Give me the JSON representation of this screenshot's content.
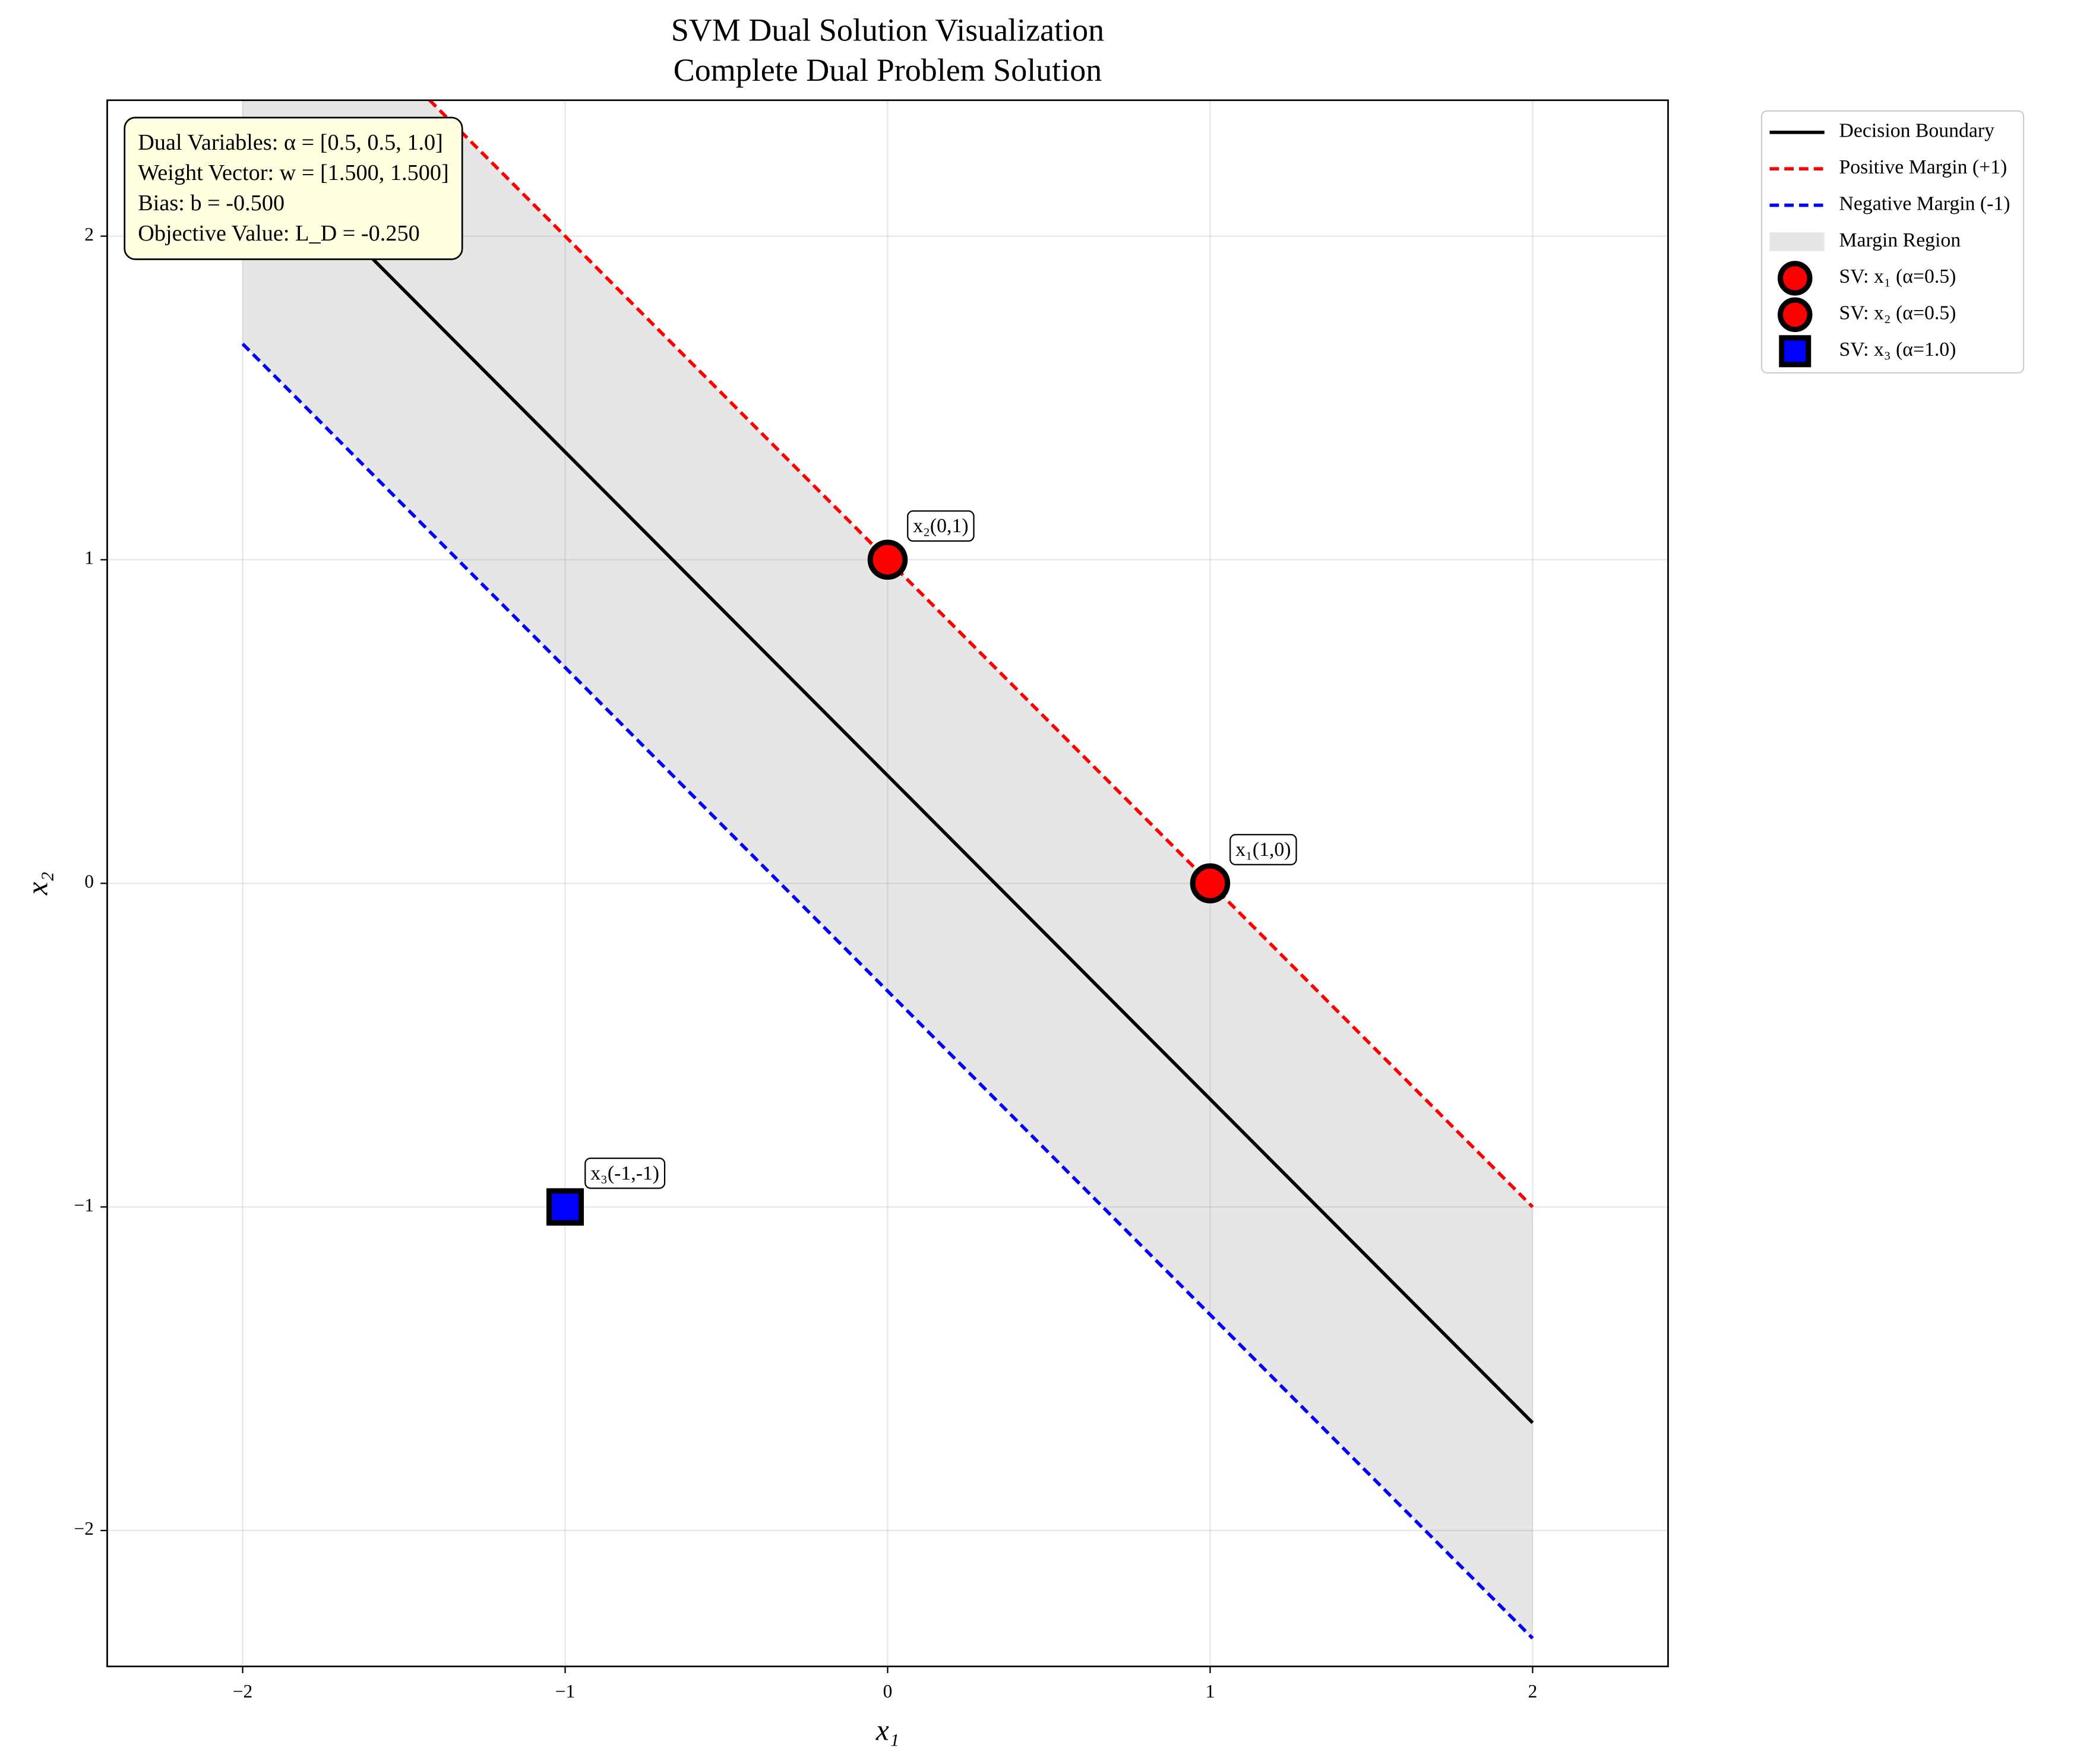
{
  "chart_data": {
    "type": "line",
    "title": "SVM Dual Solution Visualization",
    "subtitle": "Complete Dual Problem Solution",
    "x_label": "x₁",
    "y_label": "x₂",
    "xlim": [
      -2.42,
      2.42
    ],
    "ylim": [
      -2.42,
      2.42
    ],
    "xticks": [
      {
        "value": -2,
        "label": "−2"
      },
      {
        "value": -1,
        "label": "−1"
      },
      0,
      1,
      2
    ],
    "yticks": [
      {
        "value": -2,
        "label": "−2"
      },
      {
        "value": -1,
        "label": "−1"
      },
      0,
      1,
      2
    ],
    "grid": true,
    "legend": "outside upper right",
    "annotation_lines": [
      "Dual Variables: α = [0.5, 0.5, 1.0]",
      "Weight Vector: w = [1.500, 1.500]",
      "Bias: b = -0.500",
      "Objective Value: L_D = -0.250"
    ],
    "series": [
      {
        "name": "Decision Boundary",
        "kind": "line",
        "color": "black",
        "linestyle": "solid",
        "x": [
          -2,
          2
        ],
        "values": [
          2.333,
          -1.667
        ]
      },
      {
        "name": "Positive Margin (+1)",
        "kind": "line",
        "color": "red",
        "linestyle": "dashed",
        "x": [
          -2,
          2
        ],
        "values": [
          3,
          -1
        ]
      },
      {
        "name": "Negative Margin (-1)",
        "kind": "line",
        "color": "blue",
        "linestyle": "dashed",
        "x": [
          -2,
          2
        ],
        "values": [
          1.667,
          -2.333
        ]
      },
      {
        "name": "Margin Region",
        "kind": "area",
        "color": "gray",
        "alpha": 0.2,
        "x": [
          -2,
          2
        ],
        "values": [
          3,
          -1
        ],
        "lower": [
          1.667,
          -2.333
        ]
      },
      {
        "name": "SV: x₁ (α=0.5)",
        "kind": "scatter",
        "marker": "circle",
        "color": "red",
        "x": [
          1
        ],
        "values": [
          0
        ],
        "point_labels": [
          "x₁(1,0)"
        ]
      },
      {
        "name": "SV: x₂ (α=0.5)",
        "kind": "scatter",
        "marker": "circle",
        "color": "red",
        "x": [
          0
        ],
        "values": [
          1
        ],
        "point_labels": [
          "x₂(0,1)"
        ]
      },
      {
        "name": "SV: x₃ (α=1.0)",
        "kind": "scatter",
        "marker": "square",
        "color": "blue",
        "x": [
          -1
        ],
        "values": [
          -1
        ],
        "point_labels": [
          "x₃(-1,-1)"
        ]
      }
    ]
  }
}
